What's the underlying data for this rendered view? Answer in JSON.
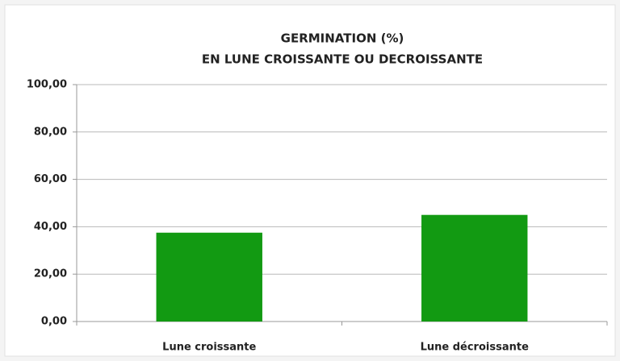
{
  "chart_data": {
    "type": "bar",
    "title": [
      "GERMINATION (%)",
      "EN LUNE CROISSANTE OU DECROISSANTE"
    ],
    "categories": [
      "Lune croissante",
      "Lune décroissante"
    ],
    "values": [
      37.5,
      45
    ],
    "color": "#129a12",
    "ylim": [
      0,
      100
    ],
    "yticks": [
      {
        "value": 0,
        "label": "0,00"
      },
      {
        "value": 20,
        "label": "20,00"
      },
      {
        "value": 40,
        "label": "40,00"
      },
      {
        "value": 60,
        "label": "60,00"
      },
      {
        "value": 80,
        "label": "80,00"
      },
      {
        "value": 100,
        "label": "100,00"
      }
    ],
    "grid": true
  }
}
